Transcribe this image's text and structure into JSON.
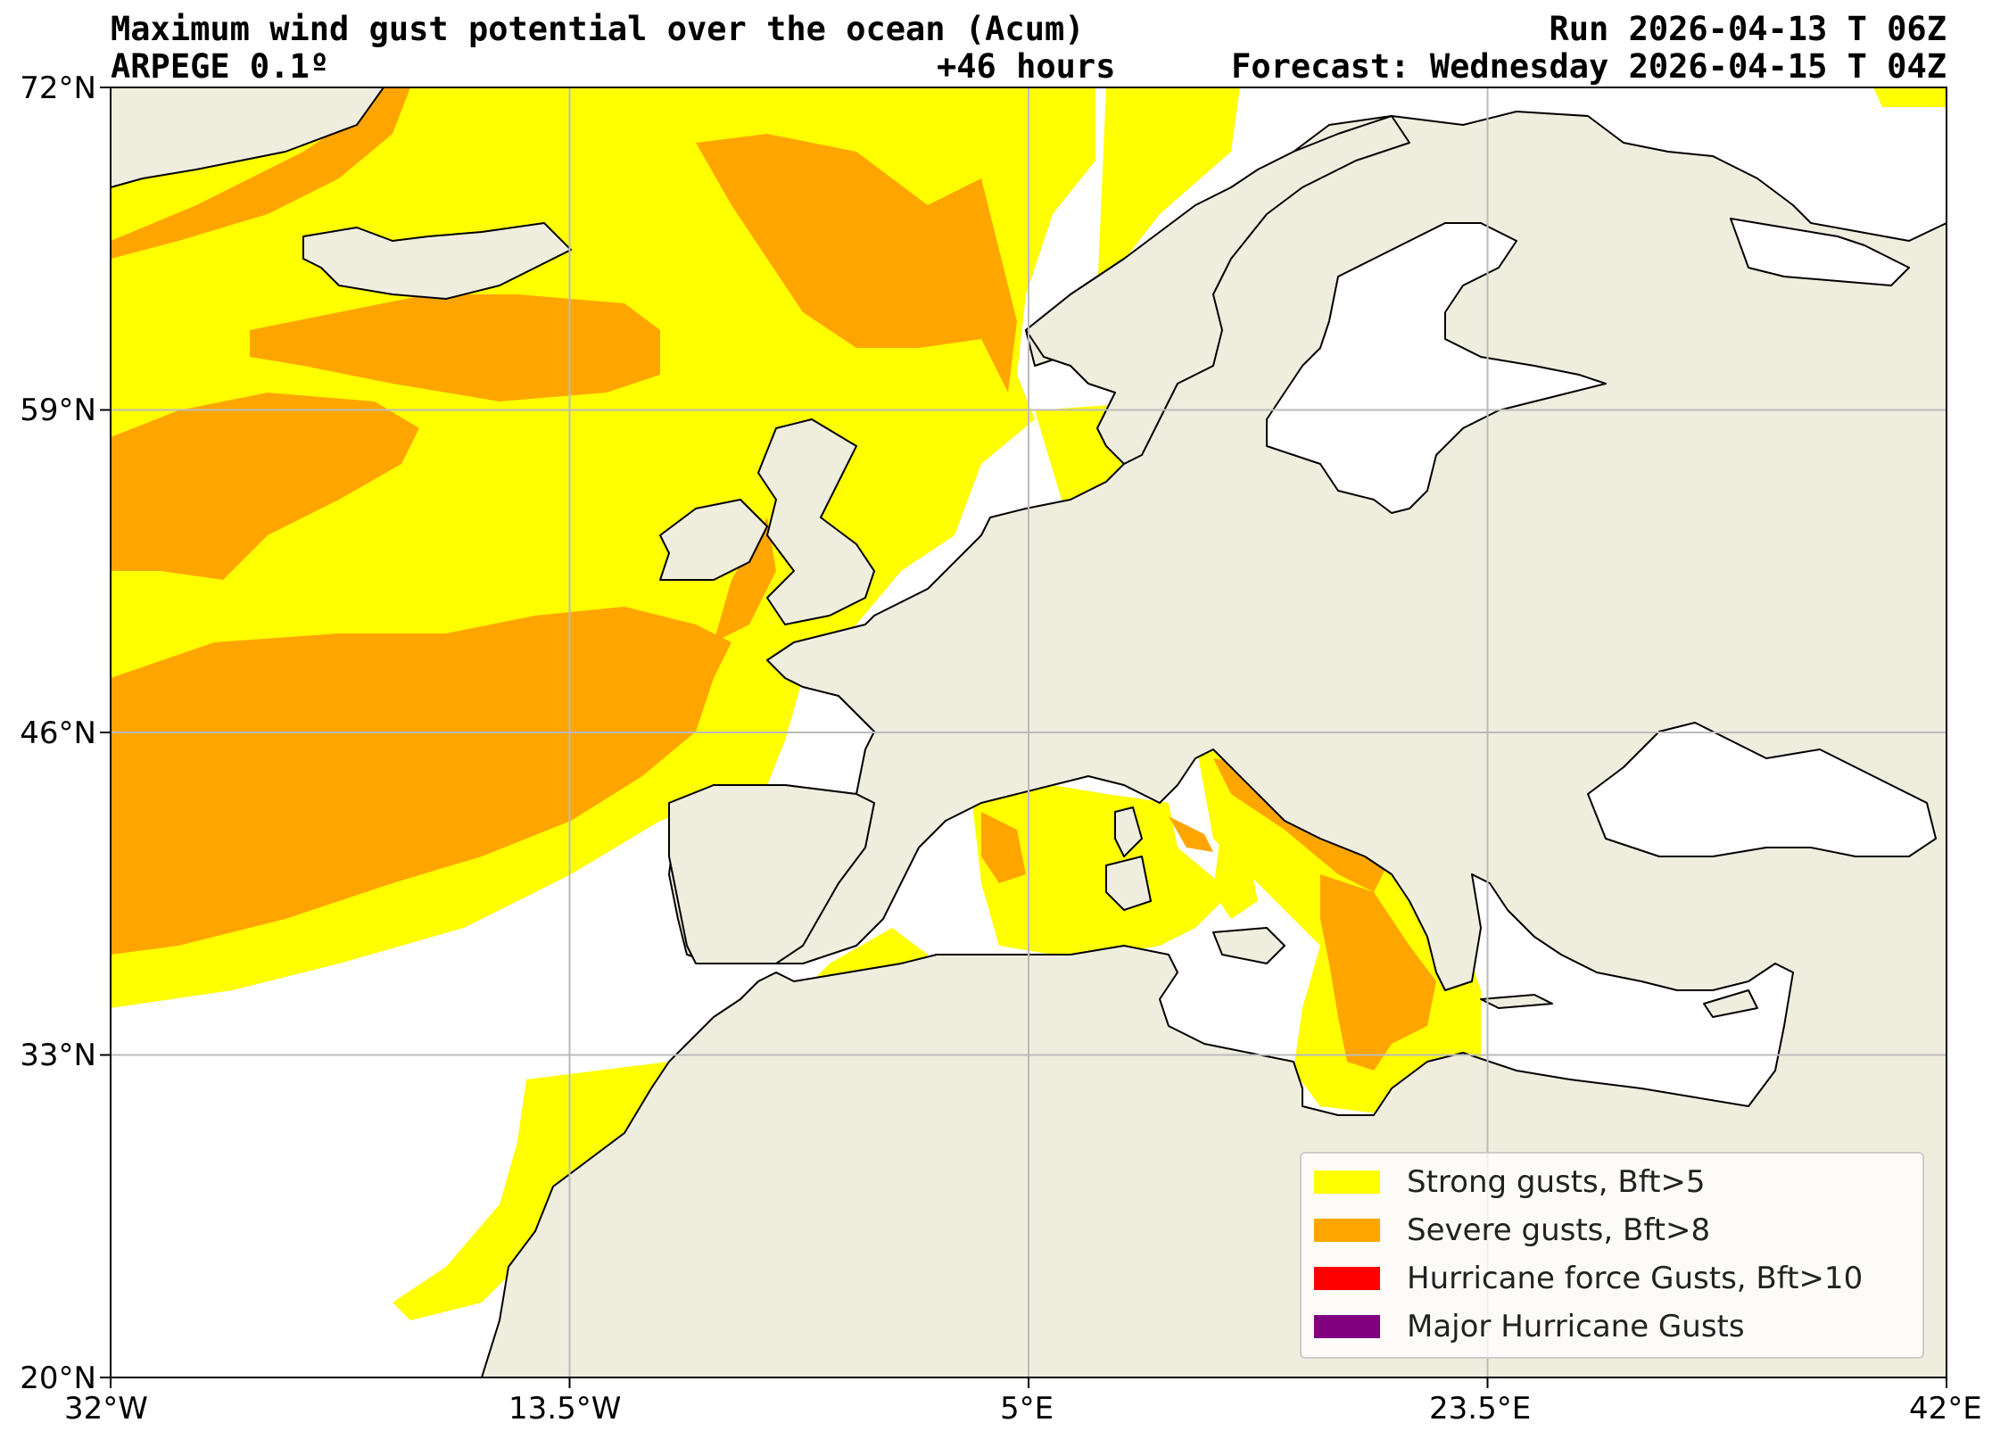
{
  "header": {
    "title": "Maximum wind gust potential over the ocean (Acum)",
    "run": "Run 2026-04-13 T 06Z",
    "model": "ARPEGE 0.1º",
    "lead": "+46 hours",
    "forecast": "Forecast: Wednesday 2026-04-15 T 04Z"
  },
  "axes": {
    "lat_labels": [
      "72°N",
      "59°N",
      "46°N",
      "33°N",
      "20°N"
    ],
    "lon_labels": [
      "32°W",
      "13.5°W",
      "5°E",
      "23.5°E",
      "42°E"
    ]
  },
  "legend": {
    "items": [
      {
        "label": "Strong gusts, Bft>5",
        "color": "#ffff00"
      },
      {
        "label": "Severe gusts, Bft>8",
        "color": "#ffa500"
      },
      {
        "label": "Hurricane force Gusts, Bft>10",
        "color": "#ff0000"
      },
      {
        "label": "Major Hurricane Gusts",
        "color": "#800080"
      }
    ]
  },
  "colors": {
    "land": "#efedde",
    "sea": "#ffffff",
    "strong": "#ffff00",
    "severe": "#ffa500",
    "grid": "#bbbbbb"
  }
}
